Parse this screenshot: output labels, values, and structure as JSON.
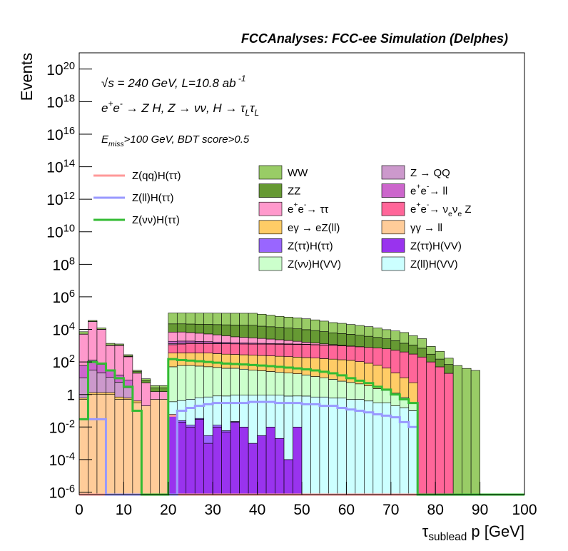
{
  "chart_data": {
    "type": "stacked_histogram",
    "title": "FCCAnalyses: FCC-ee Simulation (Delphes)",
    "annotations": [
      "√s = 240 GeV, L=10.8 ab^{ -1}",
      "e^{+}e^{-} → Z H, Z → νν, H → τ_{L}τ_{L}",
      "E_{miss}>100 GeV, BDT score>0.5"
    ],
    "x_label": "τ_{sublead} p [GeV]",
    "y_label": "Events",
    "log_y": true,
    "xlim": [
      0,
      100
    ],
    "ylim": [
      7e-07,
      1e+21
    ],
    "xticks": [
      0,
      10,
      20,
      30,
      40,
      50,
      60,
      70,
      80,
      90,
      100
    ],
    "yticks": [
      {
        "value": 1e-06,
        "label": "10^{-6}"
      },
      {
        "value": 0.0001,
        "label": "10^{-4}"
      },
      {
        "value": 0.01,
        "label": "10^{-2}"
      },
      1,
      {
        "value": 100.0,
        "label": "10^{2}"
      },
      {
        "value": 10000.0,
        "label": "10^{4}"
      },
      {
        "value": 1000000.0,
        "label": "10^{6}"
      },
      {
        "value": 100000000.0,
        "label": "10^{8}"
      },
      {
        "value": 10000000000.0,
        "label": "10^{10}"
      },
      {
        "value": 1000000000000.0,
        "label": "10^{12}"
      },
      {
        "value": 100000000000000.0,
        "label": "10^{14}"
      },
      {
        "value": 1e+16,
        "label": "10^{16}"
      },
      {
        "value": 1e+18,
        "label": "10^{18}"
      },
      {
        "value": 1e+20,
        "label": "10^{20}"
      }
    ],
    "bins": [
      0,
      2,
      4,
      6,
      8,
      10,
      12,
      14,
      16,
      18,
      20,
      22,
      24,
      26,
      28,
      30,
      32,
      34,
      36,
      38,
      40,
      42,
      44,
      46,
      48,
      50,
      52,
      54,
      56,
      58,
      60,
      62,
      64,
      66,
      68,
      70,
      72,
      74,
      76,
      78,
      80,
      82,
      84,
      86,
      88,
      90,
      92,
      94,
      96,
      98,
      100
    ],
    "series": [
      {
        "name": "Z(ττ)H(VV)",
        "color": "#9933ee",
        "values": [
          0,
          0,
          0,
          0,
          0,
          0,
          0,
          0,
          0,
          0,
          0.05,
          0.02,
          0.01,
          0.03,
          0.001,
          0.01,
          0.005,
          0.02,
          0.01,
          0.001,
          0.003,
          0.01,
          0.002,
          0.0001,
          0.01,
          0,
          0,
          0,
          0,
          0,
          0,
          0,
          0,
          0,
          0,
          0,
          0,
          0,
          0,
          0,
          0,
          0,
          0,
          0,
          0,
          0,
          0,
          0,
          0,
          0
        ]
      },
      {
        "name": "Z(ττ)H(ττ)",
        "color": "#9966ff",
        "values": [
          0,
          0,
          0,
          0,
          0,
          0,
          0,
          0,
          0,
          0,
          0.01,
          0.005,
          0.003,
          0.004,
          0.002,
          0.003,
          0.001,
          0.002,
          0,
          0,
          0,
          0,
          0,
          0,
          0,
          0,
          0,
          0,
          0,
          0,
          0,
          0,
          0,
          0,
          0,
          0,
          0,
          0,
          0,
          0,
          0,
          0,
          0,
          0,
          0,
          0,
          0,
          0,
          0,
          0
        ]
      },
      {
        "name": "γγ → ll",
        "color": "#ffcc99",
        "values": [
          0.5,
          1,
          1,
          1,
          0.5,
          0.5,
          0.3,
          0.2,
          0.5,
          0.5,
          0,
          0,
          0,
          0,
          0,
          0,
          0,
          0,
          0,
          0,
          0,
          0,
          0,
          0,
          0,
          0,
          0,
          0,
          0,
          0,
          0,
          0,
          0,
          0,
          0,
          0,
          0,
          0,
          0,
          0,
          0,
          0,
          0,
          0,
          0,
          0,
          0,
          0,
          0,
          0
        ]
      },
      {
        "name": "Z(ll)H(VV)",
        "color": "#ccffff",
        "values": [
          0,
          0,
          0,
          0,
          0,
          0,
          0,
          0,
          0,
          0,
          0.3,
          0.4,
          0.5,
          0.6,
          0.7,
          0.8,
          0.8,
          0.9,
          0.9,
          0.9,
          0.9,
          0.9,
          0.9,
          0.8,
          0.8,
          0.8,
          0.7,
          0.7,
          0.6,
          0.6,
          0.5,
          0.5,
          0.4,
          0.3,
          0.3,
          0.2,
          0.15,
          0.1,
          0,
          0,
          0,
          0,
          0,
          0,
          0,
          0,
          0,
          0,
          0,
          0
        ]
      },
      {
        "name": "Z(νν)H(VV)",
        "color": "#ccffcc",
        "values": [
          0,
          0,
          0,
          0,
          0,
          0,
          0,
          0,
          0,
          0,
          50,
          60,
          60,
          55,
          50,
          45,
          40,
          40,
          35,
          30,
          28,
          25,
          22,
          20,
          18,
          15,
          12,
          10,
          8,
          6,
          5,
          4,
          3,
          2,
          1.5,
          1,
          0.5,
          0.2,
          0,
          0,
          0,
          0,
          0,
          0,
          0,
          0,
          0,
          0,
          0,
          0
        ]
      },
      {
        "name": "eγ → eZ(ll)",
        "color": "#ffcc66",
        "values": [
          0.1,
          0.3,
          0.3,
          0.3,
          0.2,
          0.1,
          0.1,
          0,
          0,
          0,
          300,
          300,
          300,
          300,
          300,
          280,
          260,
          250,
          240,
          230,
          220,
          210,
          200,
          190,
          180,
          170,
          160,
          150,
          140,
          130,
          120,
          100,
          80,
          60,
          40,
          20,
          10,
          5,
          0,
          0,
          0,
          0,
          0,
          0,
          0,
          0,
          0,
          0,
          0,
          0
        ]
      },
      {
        "name": "e^{+}e^{-}→ ν_{e}ν_{e} Z",
        "color": "#ff6699",
        "values": [
          0,
          0,
          0,
          0,
          0,
          0,
          0,
          0,
          0,
          0,
          800,
          900,
          1000,
          1000,
          1000,
          1000,
          1000,
          1000,
          1000,
          1000,
          1000,
          1000,
          1000,
          1000,
          1000,
          1000,
          950,
          900,
          900,
          850,
          800,
          750,
          700,
          650,
          600,
          500,
          400,
          300,
          200,
          100,
          50,
          20,
          0,
          0,
          0,
          0,
          0,
          0,
          0,
          0
        ]
      },
      {
        "name": "Z → QQ",
        "color": "#cc99cc",
        "values": [
          10,
          30,
          20,
          10,
          5,
          2,
          0,
          0,
          0,
          0,
          200,
          150,
          100,
          80,
          60,
          40,
          30,
          20,
          10,
          5,
          2,
          1,
          0,
          0,
          0,
          0,
          0,
          0,
          0,
          0,
          0,
          0,
          0,
          0,
          0,
          0,
          0,
          0,
          0,
          0,
          0,
          0,
          0,
          0,
          0,
          0,
          0,
          0,
          0,
          0
        ]
      },
      {
        "name": "e^{+}e^{-}→ ll",
        "color": "#cc66cc",
        "values": [
          50,
          100,
          50,
          20,
          10,
          5,
          0,
          0,
          0,
          0,
          500,
          500,
          450,
          400,
          350,
          300,
          250,
          200,
          180,
          160,
          140,
          120,
          100,
          80,
          60,
          50,
          40,
          30,
          20,
          10,
          5,
          0,
          0,
          0,
          0,
          0,
          0,
          0,
          0,
          0,
          0,
          0,
          0,
          0,
          0,
          0,
          0,
          0,
          0,
          0
        ]
      },
      {
        "name": "e^{+}e^{-}→ ττ",
        "color": "#ff99cc",
        "values": [
          5000,
          30000,
          10000,
          1000,
          1000,
          200,
          20,
          5,
          1,
          1,
          5000,
          5000,
          4500,
          4000,
          3500,
          3000,
          2500,
          2000,
          1800,
          1600,
          1400,
          1200,
          1000,
          800,
          600,
          400,
          300,
          200,
          100,
          50,
          20,
          10,
          0,
          0,
          0,
          0,
          0,
          0,
          0,
          0,
          0,
          0,
          0,
          0,
          0,
          0,
          0,
          0,
          0,
          0
        ]
      },
      {
        "name": "ZZ",
        "color": "#669933",
        "values": [
          100,
          300,
          200,
          50,
          50,
          20,
          5,
          2,
          1,
          1,
          15000,
          15000,
          15000,
          15000,
          15000,
          15000,
          15000,
          15000,
          15000,
          15000,
          13000,
          12000,
          11000,
          10000,
          9000,
          8000,
          7000,
          6000,
          5000,
          4500,
          4000,
          3500,
          3000,
          2500,
          2000,
          1500,
          1000,
          800,
          500,
          200,
          100,
          50,
          0,
          0,
          0,
          0,
          0,
          0,
          0,
          0
        ]
      },
      {
        "name": "WW",
        "color": "#99cc66",
        "values": [
          2000,
          5000,
          2000,
          300,
          200,
          50,
          5,
          2,
          1,
          1,
          80000,
          80000,
          80000,
          80000,
          80000,
          80000,
          80000,
          80000,
          80000,
          80000,
          70000,
          60000,
          50000,
          45000,
          40000,
          35000,
          30000,
          25000,
          20000,
          18000,
          15000,
          13000,
          11000,
          9000,
          7000,
          6000,
          5000,
          3000,
          2000,
          600,
          300,
          100,
          60,
          40,
          30,
          0,
          0,
          0,
          0,
          0
        ]
      }
    ],
    "line_series": [
      {
        "name": "Z(qq)H(ττ)",
        "color": "#ff9999",
        "values": [
          0,
          0,
          0,
          0,
          0,
          0,
          0,
          0,
          0,
          0,
          0.05,
          0,
          0,
          0,
          0,
          0,
          0,
          0,
          0,
          0,
          0,
          0,
          0,
          0,
          0,
          0,
          0,
          0,
          0,
          0,
          0,
          0,
          0,
          0,
          0,
          0,
          0,
          0,
          0,
          0,
          0,
          0,
          0,
          0,
          0,
          0,
          0,
          0,
          0,
          0
        ]
      },
      {
        "name": "Z(ll)H(ττ)",
        "color": "#9999ff",
        "values": [
          0.03,
          0.03,
          0.03,
          0,
          0,
          0,
          0,
          0,
          0,
          0,
          0,
          0.1,
          0.15,
          0.2,
          0.25,
          0.3,
          0.3,
          0.3,
          0.3,
          0.35,
          0.35,
          0.35,
          0.3,
          0.3,
          0.3,
          0.25,
          0.25,
          0.2,
          0.2,
          0.15,
          0.12,
          0.1,
          0.08,
          0.06,
          0.05,
          0.04,
          0.02,
          0.01,
          0,
          0,
          0,
          0,
          0,
          0,
          0,
          0,
          0,
          0,
          0,
          0
        ]
      },
      {
        "name": "Z(νν)H(ττ)",
        "color": "#33bb33",
        "values": [
          0.03,
          100,
          80,
          30,
          10,
          3,
          0.1,
          0,
          0,
          0,
          150,
          130,
          120,
          110,
          100,
          90,
          80,
          75,
          70,
          65,
          60,
          55,
          50,
          45,
          40,
          35,
          30,
          25,
          20,
          15,
          10,
          7,
          5,
          3,
          2,
          1,
          0.5,
          0.3,
          0,
          0,
          0,
          0,
          0,
          0,
          0,
          0,
          0,
          0,
          0,
          0
        ]
      }
    ]
  }
}
